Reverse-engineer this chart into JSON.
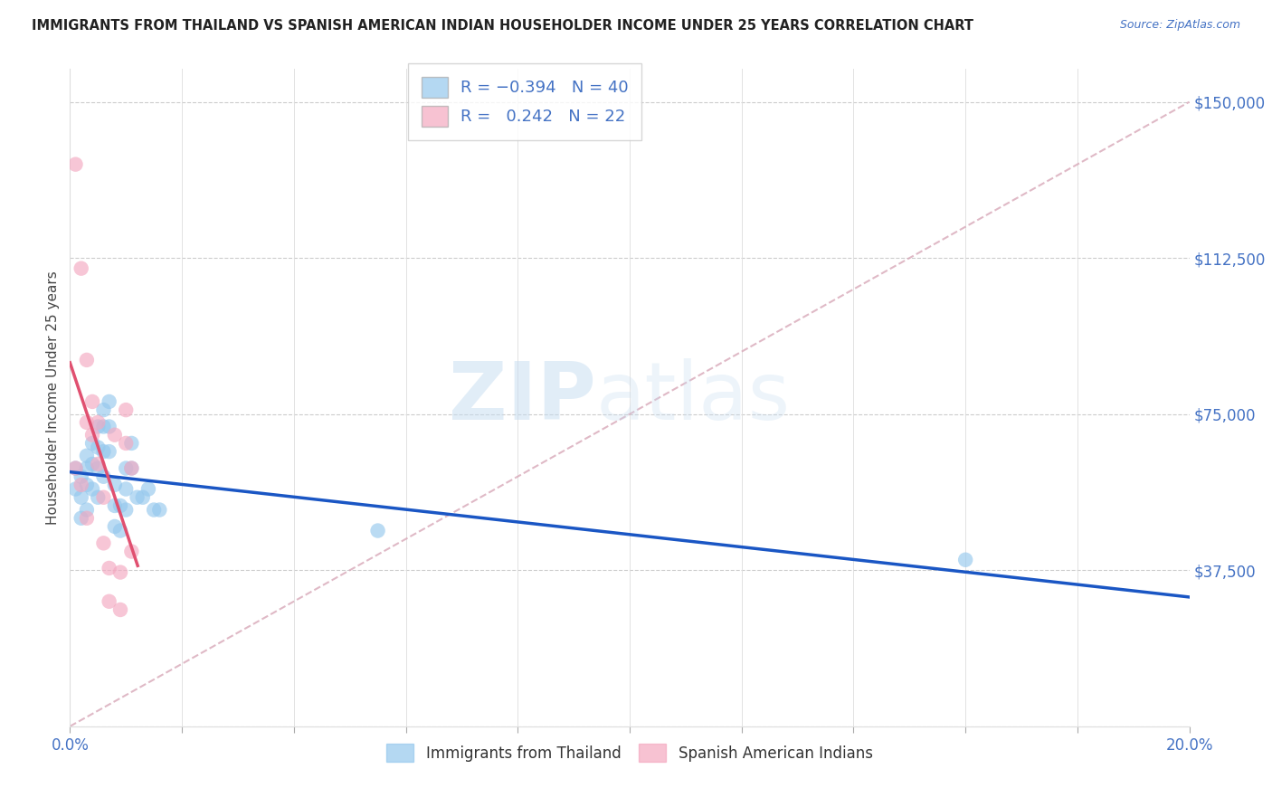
{
  "title": "IMMIGRANTS FROM THAILAND VS SPANISH AMERICAN INDIAN HOUSEHOLDER INCOME UNDER 25 YEARS CORRELATION CHART",
  "source": "Source: ZipAtlas.com",
  "ylabel": "Householder Income Under 25 years",
  "xlim": [
    0.0,
    0.2
  ],
  "ylim": [
    0,
    158000
  ],
  "yticks": [
    0,
    37500,
    75000,
    112500,
    150000
  ],
  "ytick_labels": [
    "",
    "$37,500",
    "$75,000",
    "$112,500",
    "$150,000"
  ],
  "xticks": [
    0.0,
    0.02,
    0.04,
    0.06,
    0.08,
    0.1,
    0.12,
    0.14,
    0.16,
    0.18,
    0.2
  ],
  "xtick_labels": [
    "0.0%",
    "",
    "",
    "",
    "",
    "",
    "",
    "",
    "",
    "",
    "20.0%"
  ],
  "color_thailand": "#95C8ED",
  "color_pink": "#F4A8C0",
  "color_blue_line": "#1A56C4",
  "color_pink_line": "#E05070",
  "color_dashed": "#D8A8B8",
  "watermark_zip": "ZIP",
  "watermark_atlas": "atlas",
  "thailand_x": [
    0.001,
    0.001,
    0.002,
    0.002,
    0.002,
    0.003,
    0.003,
    0.003,
    0.003,
    0.004,
    0.004,
    0.004,
    0.005,
    0.005,
    0.005,
    0.005,
    0.006,
    0.006,
    0.006,
    0.006,
    0.007,
    0.007,
    0.007,
    0.008,
    0.008,
    0.008,
    0.009,
    0.009,
    0.01,
    0.01,
    0.01,
    0.011,
    0.011,
    0.012,
    0.013,
    0.014,
    0.015,
    0.016,
    0.055,
    0.16
  ],
  "thailand_y": [
    62000,
    57000,
    60000,
    55000,
    50000,
    65000,
    62000,
    58000,
    52000,
    68000,
    63000,
    57000,
    72000,
    67000,
    62000,
    55000,
    76000,
    72000,
    66000,
    60000,
    78000,
    72000,
    66000,
    58000,
    53000,
    48000,
    53000,
    47000,
    62000,
    57000,
    52000,
    68000,
    62000,
    55000,
    55000,
    57000,
    52000,
    52000,
    47000,
    40000
  ],
  "spanish_x": [
    0.001,
    0.001,
    0.002,
    0.002,
    0.003,
    0.003,
    0.003,
    0.004,
    0.004,
    0.005,
    0.005,
    0.006,
    0.006,
    0.007,
    0.007,
    0.008,
    0.009,
    0.009,
    0.01,
    0.01,
    0.011,
    0.011
  ],
  "spanish_y": [
    135000,
    62000,
    110000,
    58000,
    88000,
    73000,
    50000,
    78000,
    70000,
    73000,
    63000,
    55000,
    44000,
    38000,
    30000,
    70000,
    37000,
    28000,
    76000,
    68000,
    62000,
    42000
  ]
}
